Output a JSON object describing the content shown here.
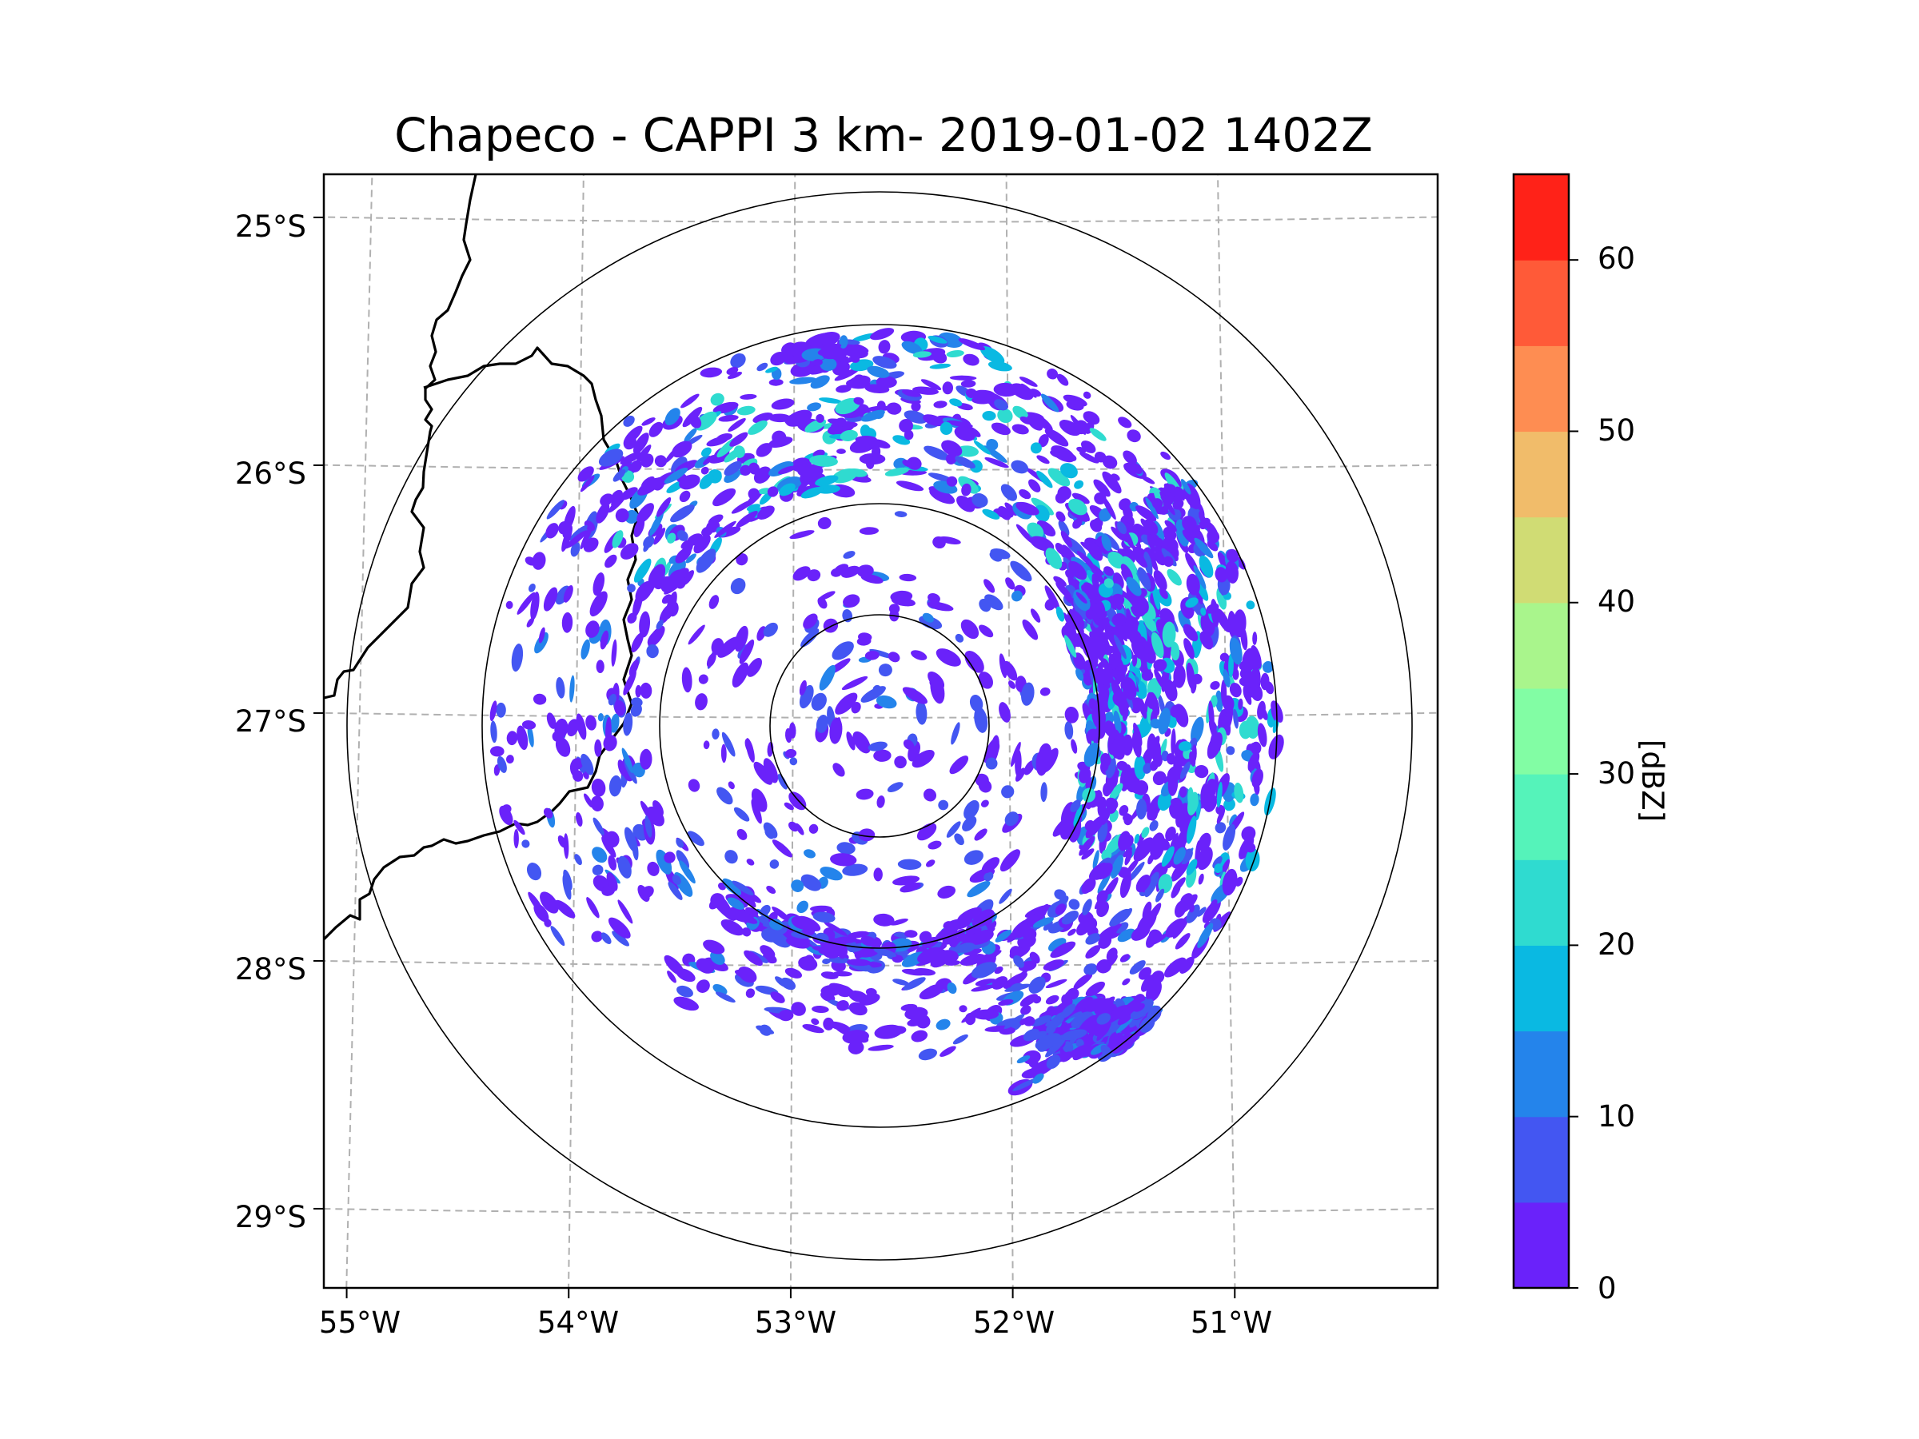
{
  "chart_data": {
    "type": "radar-ppi-map",
    "title": "Chapeco - CAPPI 3 km- 2019-01-02 1402Z",
    "radar_site": "Chapeco",
    "product": "CAPPI 3 km",
    "timestamp": "2019-01-02 1402Z",
    "map": {
      "lon_range": [
        -55.1,
        -50.0
      ],
      "lat_range": [
        -29.3,
        -24.8
      ],
      "lon_ticks": [
        -55,
        -54,
        -53,
        -52,
        -51
      ],
      "lat_ticks": [
        -25,
        -26,
        -27,
        -28,
        -29
      ],
      "lon_tick_labels": [
        "55°W",
        "54°W",
        "53°W",
        "52°W",
        "51°W"
      ],
      "lat_tick_labels": [
        "25°S",
        "26°S",
        "27°S",
        "28°S",
        "29°S"
      ],
      "grid": "dashed",
      "radar_center": {
        "lon": -52.6,
        "lat": -27.03
      },
      "range_rings_deg_lat": [
        0.45,
        0.9,
        1.62,
        2.16
      ]
    },
    "colorbar": {
      "label": "[dBZ]",
      "ticks": [
        0,
        10,
        20,
        30,
        40,
        50,
        60
      ],
      "tick_labels": [
        "0",
        "10",
        "20",
        "30",
        "40",
        "50",
        "60"
      ],
      "range": [
        0,
        65
      ],
      "bin_width": 5,
      "colors": [
        "#6a22fa",
        "#4356f2",
        "#2484eb",
        "#0ab9e2",
        "#2fdbd0",
        "#55f3ba",
        "#82fda4",
        "#a9f58c",
        "#d0dc74",
        "#f1bc6a",
        "#fe8d52",
        "#ff5a38",
        "#ff2218"
      ]
    },
    "echo_regions": [
      {
        "name": "north arc",
        "center": {
          "lon": -53.1,
          "lat": -26.0
        },
        "peak_dbz": 20
      },
      {
        "name": "east cluster",
        "center": {
          "lon": -51.5,
          "lat": -26.7
        },
        "peak_dbz": 25
      },
      {
        "name": "southeast band",
        "center": {
          "lon": -51.6,
          "lat": -28.2
        },
        "peak_dbz": 10
      },
      {
        "name": "south arc",
        "center": {
          "lon": -52.6,
          "lat": -27.95
        },
        "peak_dbz": 10
      },
      {
        "name": "west fringe",
        "center": {
          "lon": -54.3,
          "lat": -26.8
        },
        "peak_dbz": 10
      }
    ]
  }
}
